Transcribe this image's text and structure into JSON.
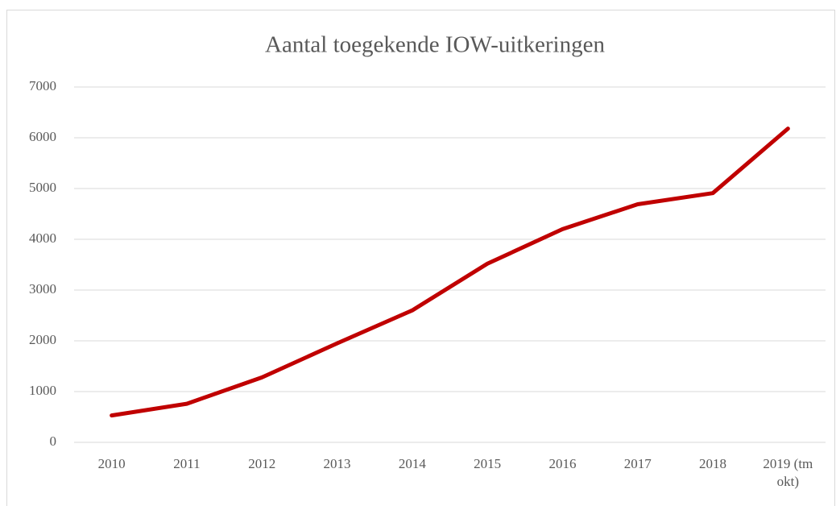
{
  "chart_data": {
    "type": "line",
    "title": "Aantal toegekende IOW-uitkeringen",
    "categories": [
      "2010",
      "2011",
      "2012",
      "2013",
      "2014",
      "2015",
      "2016",
      "2017",
      "2018",
      "2019 (tm okt)"
    ],
    "series": [
      {
        "name": "Aantal toegekende IOW-uitkeringen",
        "color": "#c00000",
        "values": [
          530,
          760,
          1280,
          1950,
          2600,
          3520,
          4200,
          4690,
          4910,
          6180
        ]
      }
    ],
    "ylim": [
      0,
      7000
    ],
    "yticks": [
      0,
      1000,
      2000,
      3000,
      4000,
      5000,
      6000,
      7000
    ],
    "grid": true
  }
}
